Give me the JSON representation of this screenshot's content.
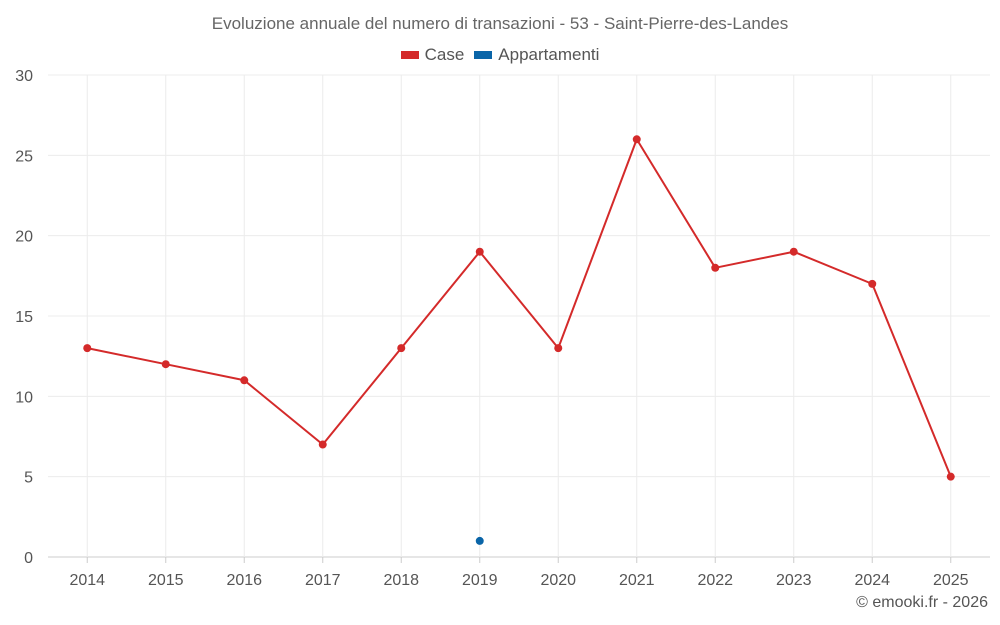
{
  "chart_data": {
    "type": "line",
    "title": "Evoluzione annuale del numero di transazioni - 53 - Saint-Pierre-des-Landes",
    "categories": [
      "2014",
      "2015",
      "2016",
      "2017",
      "2018",
      "2019",
      "2020",
      "2021",
      "2022",
      "2023",
      "2024",
      "2025"
    ],
    "series": [
      {
        "name": "Case",
        "color": "#d42a2a",
        "values": [
          13,
          12,
          11,
          7,
          13,
          19,
          13,
          26,
          18,
          19,
          17,
          5
        ]
      },
      {
        "name": "Appartamenti",
        "color": "#0a65a8",
        "values": [
          null,
          null,
          null,
          null,
          null,
          1,
          null,
          null,
          null,
          null,
          null,
          null
        ]
      }
    ],
    "ylim": [
      0,
      30
    ],
    "yticks": [
      0,
      5,
      10,
      15,
      20,
      25,
      30
    ],
    "xlabel": "",
    "ylabel": "",
    "grid": true
  },
  "credit": "© emooki.fr - 2026"
}
